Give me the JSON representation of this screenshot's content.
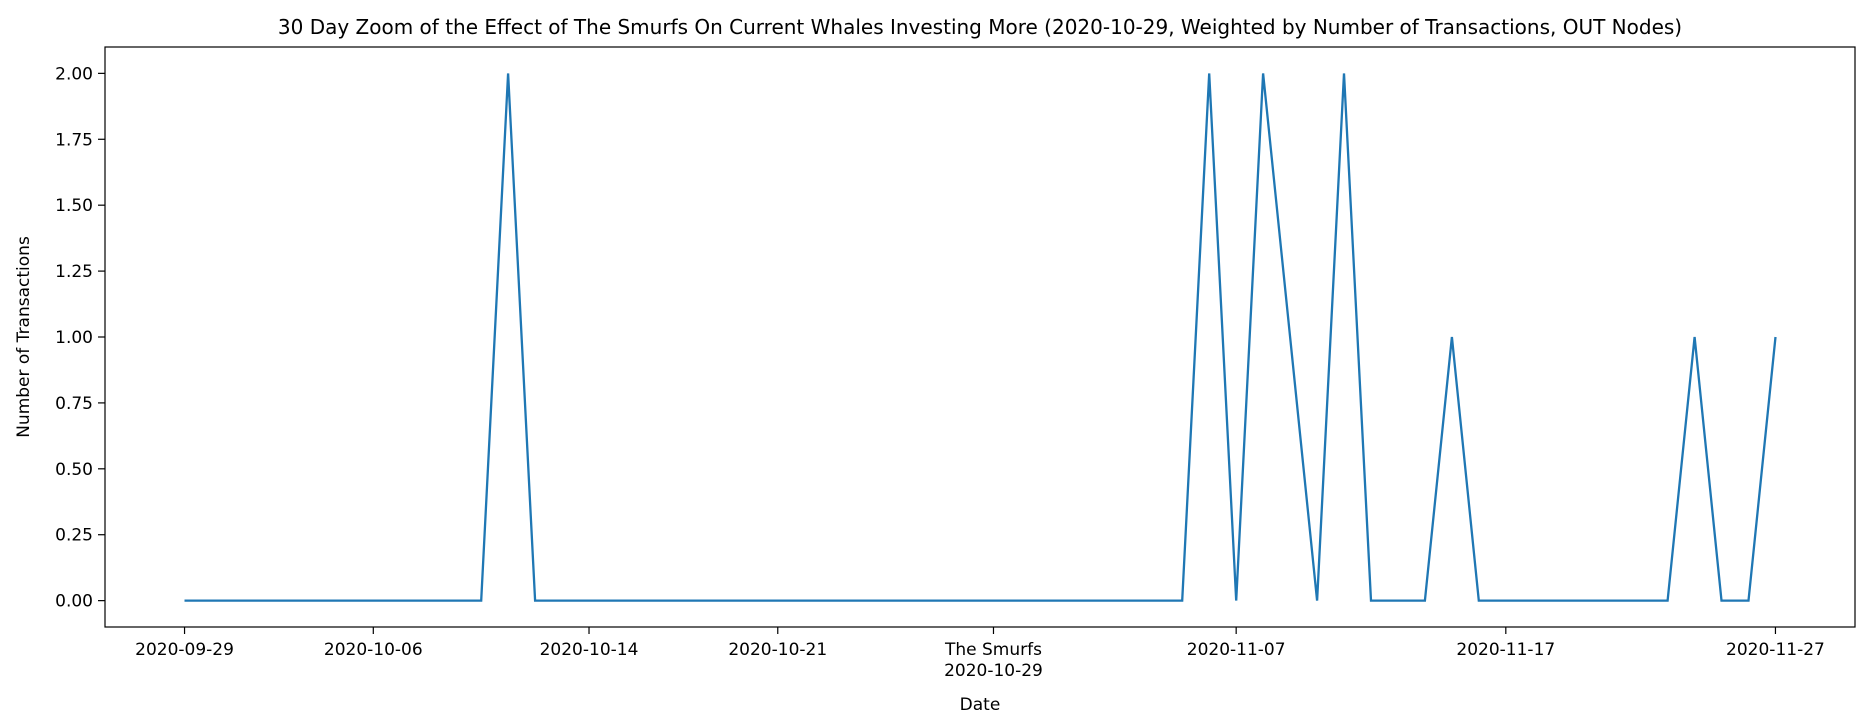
{
  "chart_data": {
    "type": "line",
    "title": "30 Day Zoom of the Effect of The Smurfs On Current Whales Investing More (2020-10-29, Weighted by Number of Transactions, OUT Nodes)",
    "xlabel": "Date",
    "ylabel": "Number of Transactions",
    "x_start": "2020-09-29",
    "x_end": "2020-11-27",
    "ylim": [
      -0.1,
      2.1
    ],
    "grid": false,
    "yticks": [
      {
        "value": 0.0,
        "label": "0.00"
      },
      {
        "value": 0.25,
        "label": "0.25"
      },
      {
        "value": 0.5,
        "label": "0.50"
      },
      {
        "value": 0.75,
        "label": "0.75"
      },
      {
        "value": 1.0,
        "label": "1.00"
      },
      {
        "value": 1.25,
        "label": "1.25"
      },
      {
        "value": 1.5,
        "label": "1.50"
      },
      {
        "value": 1.75,
        "label": "1.75"
      },
      {
        "value": 2.0,
        "label": "2.00"
      }
    ],
    "xticks": [
      {
        "date": "2020-09-29",
        "label": "2020-09-29"
      },
      {
        "date": "2020-10-06",
        "label": "2020-10-06"
      },
      {
        "date": "2020-10-14",
        "label": "2020-10-14"
      },
      {
        "date": "2020-10-21",
        "label": "2020-10-21"
      },
      {
        "date": "2020-10-29",
        "label": "2020-10-29",
        "event": "The Smurfs"
      },
      {
        "date": "2020-11-07",
        "label": "2020-11-07"
      },
      {
        "date": "2020-11-17",
        "label": "2020-11-17"
      },
      {
        "date": "2020-11-27",
        "label": "2020-11-27"
      }
    ],
    "series": [
      {
        "color": "#1f77b4",
        "x": [
          "2020-09-29",
          "2020-10-10",
          "2020-10-11",
          "2020-10-12",
          "2020-11-05",
          "2020-11-06",
          "2020-11-07",
          "2020-11-08",
          "2020-11-10",
          "2020-11-11",
          "2020-11-12",
          "2020-11-14",
          "2020-11-15",
          "2020-11-16",
          "2020-11-23",
          "2020-11-24",
          "2020-11-25",
          "2020-11-26",
          "2020-11-27"
        ],
        "y": [
          0,
          0,
          2,
          0,
          0,
          2,
          0,
          2,
          0,
          2,
          0,
          0,
          1,
          0,
          0,
          1,
          0,
          0,
          1
        ]
      }
    ]
  }
}
